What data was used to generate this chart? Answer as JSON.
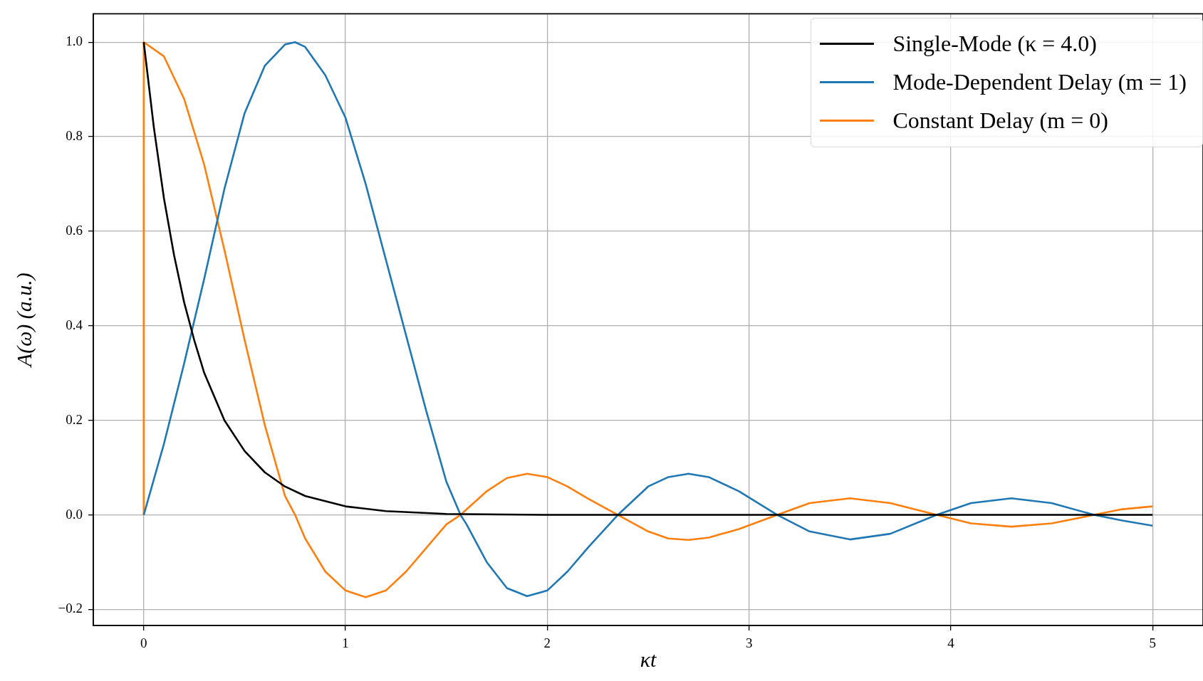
{
  "chart_data": {
    "type": "line",
    "xlabel": "κt",
    "ylabel": "A(ω) (a.u.)",
    "xlim": [
      -0.25,
      5.25
    ],
    "ylim": [
      -0.234,
      1.06
    ],
    "xticks": [
      0,
      1,
      2,
      3,
      4,
      5
    ],
    "yticks": [
      {
        "value": -0.2,
        "label": "−0.2"
      },
      {
        "value": 0,
        "label": "0.0"
      },
      {
        "value": 0.2,
        "label": "0.2"
      },
      {
        "value": 0.4,
        "label": "0.4"
      },
      {
        "value": 0.6,
        "label": "0.6"
      },
      {
        "value": 0.8,
        "label": "0.8"
      },
      {
        "value": 1,
        "label": "1.0"
      }
    ],
    "grid": true,
    "legend": "top right",
    "marker": "none",
    "series": [
      {
        "name": "Single-Mode (κ = 4.0)",
        "color": "#000000",
        "x": [
          0,
          0.05,
          0.1,
          0.15,
          0.2,
          0.25,
          0.3,
          0.4,
          0.5,
          0.6,
          0.7,
          0.8,
          1.0,
          1.2,
          1.5,
          2,
          3,
          4,
          5
        ],
        "values": [
          1,
          0.82,
          0.67,
          0.55,
          0.45,
          0.37,
          0.3,
          0.2,
          0.135,
          0.09,
          0.06,
          0.04,
          0.018,
          0.008,
          0.002,
          0,
          0,
          0,
          0
        ]
      },
      {
        "name": "Mode-Dependent Delay (m = 1)",
        "color": "#1f77b4",
        "x": [
          0,
          0.1,
          0.2,
          0.3,
          0.4,
          0.5,
          0.6,
          0.7,
          0.75,
          0.8,
          0.9,
          1.0,
          1.1,
          1.2,
          1.3,
          1.4,
          1.5,
          1.57,
          1.6,
          1.7,
          1.8,
          1.9,
          2.0,
          2.1,
          2.2,
          2.35,
          2.5,
          2.6,
          2.7,
          2.8,
          2.95,
          3.14,
          3.3,
          3.5,
          3.7,
          3.93,
          4.1,
          4.3,
          4.5,
          4.71,
          4.85,
          5.0
        ],
        "values": [
          0,
          0.15,
          0.32,
          0.5,
          0.69,
          0.85,
          0.95,
          0.995,
          1.0,
          0.99,
          0.93,
          0.84,
          0.7,
          0.54,
          0.38,
          0.22,
          0.07,
          0,
          -0.02,
          -0.1,
          -0.155,
          -0.172,
          -0.16,
          -0.12,
          -0.07,
          0,
          0.06,
          0.08,
          0.087,
          0.08,
          0.05,
          0,
          -0.035,
          -0.052,
          -0.04,
          0,
          0.025,
          0.035,
          0.025,
          0,
          -0.012,
          -0.023
        ]
      },
      {
        "name": "Constant Delay (m = 0)",
        "color": "#ff7f0e",
        "x": [
          0,
          0,
          0.1,
          0.2,
          0.3,
          0.4,
          0.5,
          0.6,
          0.7,
          0.75,
          0.8,
          0.9,
          1.0,
          1.1,
          1.2,
          1.3,
          1.4,
          1.5,
          1.57,
          1.7,
          1.8,
          1.9,
          2.0,
          2.1,
          2.2,
          2.35,
          2.5,
          2.6,
          2.7,
          2.8,
          2.95,
          3.14,
          3.3,
          3.5,
          3.7,
          3.93,
          4.1,
          4.3,
          4.5,
          4.71,
          4.85,
          5.0
        ],
        "values": [
          0,
          1,
          0.97,
          0.88,
          0.74,
          0.56,
          0.37,
          0.19,
          0.04,
          0,
          -0.05,
          -0.12,
          -0.16,
          -0.174,
          -0.16,
          -0.12,
          -0.07,
          -0.02,
          0,
          0.05,
          0.078,
          0.087,
          0.08,
          0.06,
          0.035,
          0,
          -0.035,
          -0.05,
          -0.053,
          -0.048,
          -0.03,
          0,
          0.025,
          0.035,
          0.025,
          0,
          -0.018,
          -0.025,
          -0.018,
          0,
          0.012,
          0.018
        ]
      }
    ]
  }
}
